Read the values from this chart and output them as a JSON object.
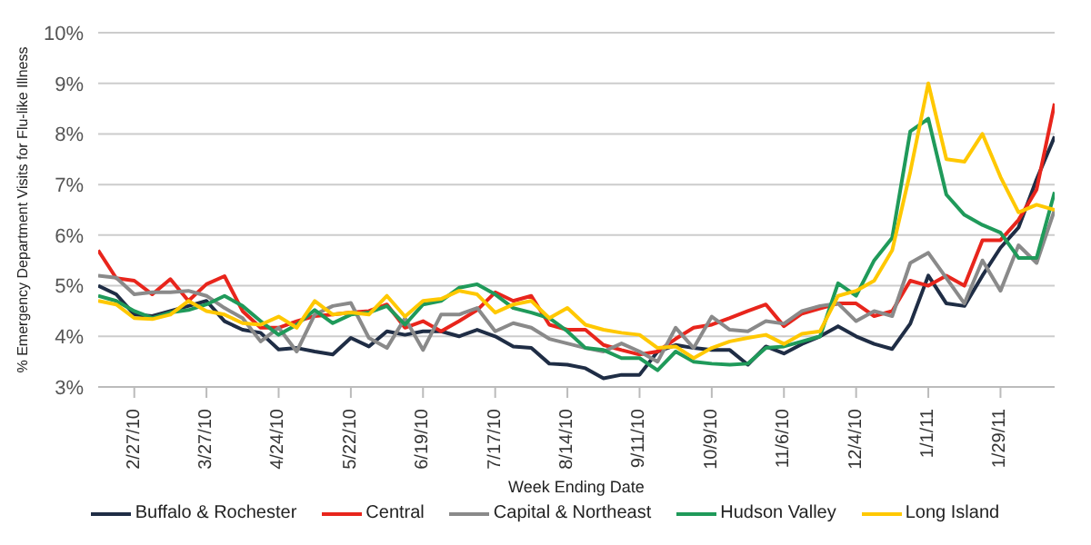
{
  "chart_data": {
    "type": "line",
    "xlabel": "Week Ending Date",
    "ylabel": "% Emergency Department Visits for Flu-like Illness",
    "x": [
      "2010-02-13",
      "2010-02-20",
      "2010-02-27",
      "2010-03-06",
      "2010-03-13",
      "2010-03-20",
      "2010-03-27",
      "2010-04-03",
      "2010-04-10",
      "2010-04-17",
      "2010-04-24",
      "2010-05-01",
      "2010-05-08",
      "2010-05-15",
      "2010-05-22",
      "2010-05-29",
      "2010-06-05",
      "2010-06-12",
      "2010-06-19",
      "2010-06-26",
      "2010-07-03",
      "2010-07-10",
      "2010-07-17",
      "2010-07-24",
      "2010-07-31",
      "2010-08-07",
      "2010-08-14",
      "2010-08-21",
      "2010-08-28",
      "2010-09-04",
      "2010-09-11",
      "2010-09-18",
      "2010-09-25",
      "2010-10-02",
      "2010-10-09",
      "2010-10-16",
      "2010-10-23",
      "2010-10-30",
      "2010-11-06",
      "2010-11-13",
      "2010-11-20",
      "2010-11-27",
      "2010-12-04",
      "2010-12-11",
      "2010-12-18",
      "2010-12-25",
      "2011-01-01",
      "2011-01-08",
      "2011-01-15",
      "2011-01-22",
      "2011-01-29",
      "2011-02-05",
      "2011-02-12",
      "2011-02-19"
    ],
    "series": [
      {
        "name": "Buffalo & Rochester",
        "color": "#1f2d45",
        "values": [
          5.0,
          4.83,
          4.43,
          4.4,
          4.5,
          4.6,
          4.7,
          4.3,
          4.13,
          4.07,
          3.74,
          3.77,
          3.7,
          3.64,
          3.97,
          3.8,
          4.1,
          4.03,
          4.1,
          4.1,
          4.0,
          4.13,
          4.0,
          3.8,
          3.77,
          3.46,
          3.44,
          3.37,
          3.17,
          3.24,
          3.24,
          3.7,
          3.83,
          3.77,
          3.73,
          3.73,
          3.44,
          3.8,
          3.66,
          3.85,
          4.0,
          4.2,
          4.0,
          3.85,
          3.75,
          4.25,
          5.2,
          4.65,
          4.6,
          5.2,
          5.75,
          6.15,
          7.1,
          7.95
        ]
      },
      {
        "name": "Central",
        "color": "#e8251c",
        "values": [
          5.7,
          5.15,
          5.1,
          4.83,
          5.13,
          4.7,
          5.03,
          5.19,
          4.5,
          4.17,
          4.17,
          4.3,
          4.4,
          4.43,
          4.47,
          4.5,
          4.63,
          4.17,
          4.3,
          4.1,
          4.3,
          4.52,
          4.87,
          4.7,
          4.8,
          4.23,
          4.13,
          4.13,
          3.83,
          3.73,
          3.64,
          3.7,
          3.95,
          4.17,
          4.23,
          4.36,
          4.5,
          4.63,
          4.2,
          4.45,
          4.55,
          4.65,
          4.65,
          4.4,
          4.5,
          5.1,
          5.0,
          5.2,
          5.0,
          5.9,
          5.9,
          6.3,
          6.9,
          8.6
        ]
      },
      {
        "name": "Capital & Northeast",
        "color": "#8a8a8a",
        "values": [
          5.2,
          5.16,
          4.83,
          4.87,
          4.87,
          4.9,
          4.8,
          4.56,
          4.36,
          3.9,
          4.17,
          3.7,
          4.43,
          4.6,
          4.66,
          3.97,
          3.77,
          4.36,
          3.73,
          4.43,
          4.43,
          4.56,
          4.1,
          4.26,
          4.17,
          3.95,
          3.86,
          3.77,
          3.7,
          3.86,
          3.7,
          3.5,
          4.17,
          3.77,
          4.39,
          4.13,
          4.1,
          4.3,
          4.25,
          4.5,
          4.6,
          4.65,
          4.3,
          4.5,
          4.4,
          5.45,
          5.65,
          5.15,
          4.65,
          5.5,
          4.9,
          5.8,
          5.45,
          6.5
        ]
      },
      {
        "name": "Hudson Valley",
        "color": "#1f9a5a",
        "values": [
          4.8,
          4.7,
          4.5,
          4.36,
          4.47,
          4.52,
          4.63,
          4.8,
          4.6,
          4.3,
          4.03,
          4.23,
          4.52,
          4.26,
          4.43,
          4.47,
          4.6,
          4.23,
          4.63,
          4.7,
          4.96,
          5.03,
          4.83,
          4.56,
          4.47,
          4.36,
          4.1,
          3.77,
          3.73,
          3.57,
          3.57,
          3.33,
          3.7,
          3.5,
          3.46,
          3.44,
          3.46,
          3.77,
          3.8,
          3.9,
          4.0,
          5.05,
          4.8,
          5.5,
          5.95,
          8.05,
          8.3,
          6.8,
          6.4,
          6.2,
          6.05,
          5.55,
          5.55,
          6.85
        ]
      },
      {
        "name": "Long Island",
        "color": "#ffc800",
        "values": [
          4.7,
          4.63,
          4.36,
          4.34,
          4.43,
          4.7,
          4.5,
          4.43,
          4.26,
          4.23,
          4.39,
          4.17,
          4.7,
          4.43,
          4.47,
          4.43,
          4.8,
          4.39,
          4.7,
          4.74,
          4.9,
          4.83,
          4.47,
          4.63,
          4.7,
          4.36,
          4.56,
          4.23,
          4.13,
          4.07,
          4.03,
          3.77,
          3.8,
          3.57,
          3.77,
          3.9,
          3.97,
          4.03,
          3.85,
          4.05,
          4.1,
          4.8,
          4.9,
          5.1,
          5.7,
          7.25,
          9.0,
          7.5,
          7.45,
          8.0,
          7.15,
          6.45,
          6.6,
          6.5
        ]
      }
    ],
    "xlim": [
      "2010-02-13",
      "2011-02-19"
    ],
    "xticks": [
      {
        "value": "2010-02-27",
        "label": "2/27/10"
      },
      {
        "value": "2010-03-27",
        "label": "3/27/10"
      },
      {
        "value": "2010-04-24",
        "label": "4/24/10"
      },
      {
        "value": "2010-05-22",
        "label": "5/22/10"
      },
      {
        "value": "2010-06-19",
        "label": "6/19/10"
      },
      {
        "value": "2010-07-17",
        "label": "7/17/10"
      },
      {
        "value": "2010-08-14",
        "label": "8/14/10"
      },
      {
        "value": "2010-09-11",
        "label": "9/11/10"
      },
      {
        "value": "2010-10-09",
        "label": "10/9/10"
      },
      {
        "value": "2010-11-06",
        "label": "11/6/10"
      },
      {
        "value": "2010-12-04",
        "label": "12/4/10"
      },
      {
        "value": "2011-01-01",
        "label": "1/1/11"
      },
      {
        "value": "2011-01-29",
        "label": "1/29/11"
      }
    ],
    "ylim": [
      3,
      10
    ],
    "yticks": [
      {
        "value": 3,
        "label": "3%"
      },
      {
        "value": 4,
        "label": "4%"
      },
      {
        "value": 5,
        "label": "5%"
      },
      {
        "value": 6,
        "label": "6%"
      },
      {
        "value": 7,
        "label": "7%"
      },
      {
        "value": 8,
        "label": "8%"
      },
      {
        "value": 9,
        "label": "9%"
      },
      {
        "value": 10,
        "label": "10%"
      }
    ],
    "grid": "y",
    "legend": "bottom",
    "marker": "none",
    "line_style": "solid"
  }
}
